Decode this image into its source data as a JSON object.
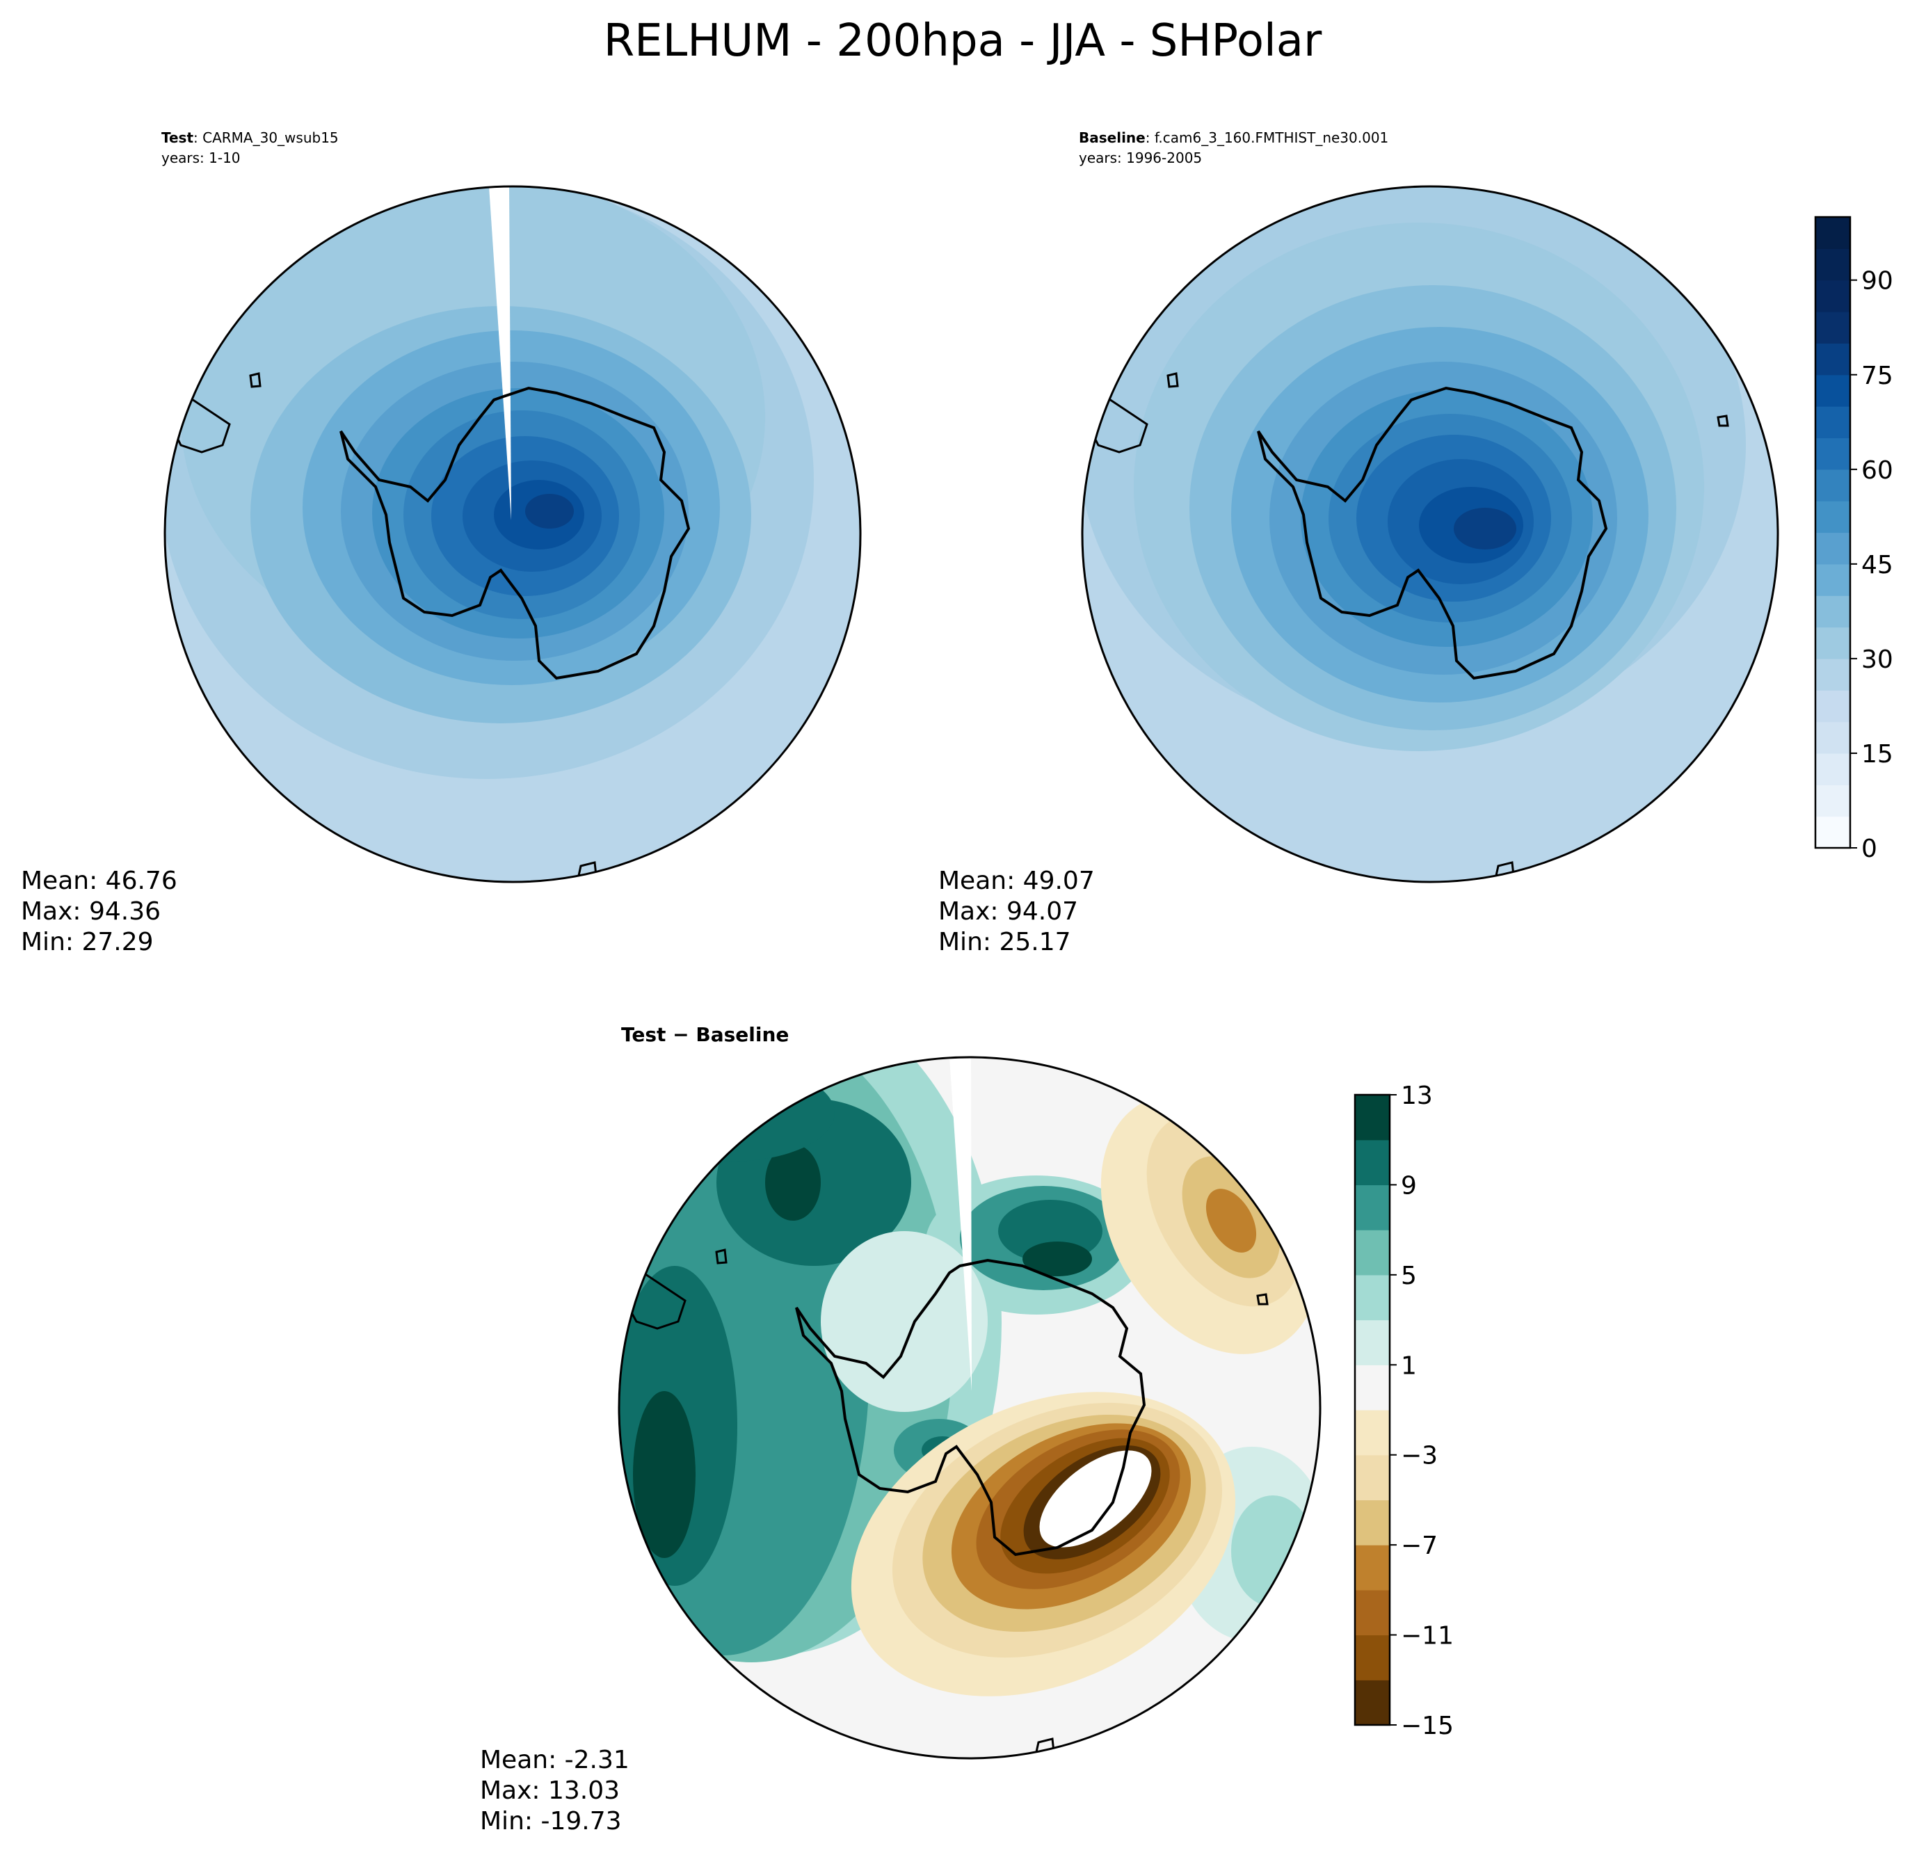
{
  "figure": {
    "title": "RELHUM - 200hpa - JJA - SHPolar"
  },
  "chart_data": [
    {
      "type": "heatmap",
      "projection": "south-polar-stereographic",
      "panel": "test",
      "label_bold": "Test",
      "label_rest": ": CARMA_30_wsub15",
      "years": "years: 1-10",
      "stats": {
        "mean": "Mean: 46.76",
        "max": "Max: 94.36",
        "min": "Min: 27.29"
      },
      "summary": {
        "mean": 46.76,
        "max": 94.36,
        "min": 27.29
      },
      "colormap": "Blues",
      "missing_wedge": true
    },
    {
      "type": "heatmap",
      "projection": "south-polar-stereographic",
      "panel": "baseline",
      "label_bold": "Baseline",
      "label_rest": ": f.cam6_3_160.FMTHIST_ne30.001",
      "years": "years: 1996-2005",
      "stats": {
        "mean": "Mean: 49.07",
        "max": "Max: 94.07",
        "min": "Min: 25.17"
      },
      "summary": {
        "mean": 49.07,
        "max": 94.07,
        "min": 25.17
      },
      "colormap": "Blues",
      "colorbar": {
        "min": 0,
        "max": 100,
        "levels": 20,
        "ticks": [
          "0",
          "15",
          "30",
          "45",
          "60",
          "75",
          "90"
        ]
      }
    },
    {
      "type": "heatmap",
      "projection": "south-polar-stereographic",
      "panel": "difference",
      "label_bold": "Test − Baseline",
      "stats": {
        "mean": "Mean: -2.31",
        "max": "Max: 13.03",
        "min": "Min: -19.73"
      },
      "summary": {
        "mean": -2.31,
        "max": 13.03,
        "min": -19.73
      },
      "colormap": "BrBG",
      "missing_wedge": true,
      "colorbar": {
        "min": -15,
        "max": 13,
        "levels": 14,
        "ticks": [
          "13",
          "9",
          "5",
          "1",
          "−3",
          "−7",
          "−11",
          "−15"
        ]
      }
    }
  ],
  "colors": {
    "blues": [
      "#f7fbff",
      "#e9f2fa",
      "#deebf7",
      "#d0e2f2",
      "#c6dbef",
      "#b3d3e8",
      "#9ecae1",
      "#87bedc",
      "#6baed6",
      "#59a0cf",
      "#4292c6",
      "#3383be",
      "#2171b5",
      "#1562aa",
      "#08519c",
      "#084084",
      "#08306b",
      "#06285e",
      "#052454",
      "#041f48"
    ],
    "brbg": [
      "#543005",
      "#8c510a",
      "#a9661c",
      "#bf812d",
      "#dfc27d",
      "#f0dcae",
      "#f6e8c3",
      "#f5f5f5",
      "#d3ede9",
      "#a3dbd3",
      "#6fbfb2",
      "#35978f",
      "#0f6f68",
      "#01463a"
    ]
  }
}
